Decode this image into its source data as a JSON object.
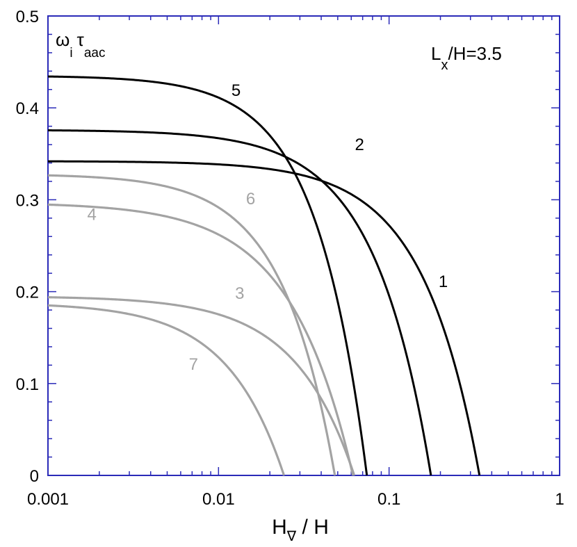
{
  "chart_data": {
    "type": "line",
    "x_scale": "log",
    "xlim": [
      0.001,
      1
    ],
    "ylim": [
      0,
      0.5
    ],
    "x_ticks": [
      {
        "value": 0.001,
        "label": "0.001"
      },
      {
        "value": 0.01,
        "label": "0.01"
      },
      {
        "value": 0.1,
        "label": "0.1"
      },
      {
        "value": 1,
        "label": "1"
      }
    ],
    "y_ticks": [
      {
        "value": 0,
        "label": "0"
      },
      {
        "value": 0.1,
        "label": "0.1"
      },
      {
        "value": 0.2,
        "label": "0.2"
      },
      {
        "value": 0.3,
        "label": "0.3"
      },
      {
        "value": 0.4,
        "label": "0.4"
      },
      {
        "value": 0.5,
        "label": "0.5"
      }
    ],
    "xlabel": {
      "main": "H",
      "sub": "∇",
      "rest": " / H"
    },
    "ylabel": {
      "w": "ω",
      "w_sub": "i",
      "t": "τ",
      "t_sub": "aac"
    },
    "annotation": {
      "main": "L",
      "sub": "x",
      "rest": "/H=3.5"
    },
    "grid": false,
    "colors": {
      "frame": "#2a2ab8",
      "black": "#000000",
      "gray": "#a3a3a3"
    },
    "series": [
      {
        "name": "1",
        "color": "black",
        "y0": 0.342,
        "xc": 0.339,
        "p": 1.3
      },
      {
        "name": "2",
        "color": "black",
        "y0": 0.376,
        "xc": 0.176,
        "p": 1.3
      },
      {
        "name": "3",
        "color": "gray",
        "y0": 0.195,
        "xc": 0.0625,
        "p": 1.25
      },
      {
        "name": "4",
        "color": "gray",
        "y0": 0.297,
        "xc": 0.0614,
        "p": 1.18
      },
      {
        "name": "5",
        "color": "black",
        "y0": 0.435,
        "xc": 0.0741,
        "p": 1.45
      },
      {
        "name": "6",
        "color": "gray",
        "y0": 0.328,
        "xc": 0.0481,
        "p": 1.4
      },
      {
        "name": "7",
        "color": "gray",
        "y0": 0.188,
        "xc": 0.0242,
        "p": 1.3
      }
    ],
    "curve_labels": [
      {
        "text": "1",
        "x": 0.195,
        "y": 0.205,
        "color": "black"
      },
      {
        "text": "2",
        "x": 0.063,
        "y": 0.354,
        "color": "black"
      },
      {
        "text": "3",
        "x": 0.0125,
        "y": 0.192,
        "color": "gray"
      },
      {
        "text": "4",
        "x": 0.0017,
        "y": 0.278,
        "color": "gray"
      },
      {
        "text": "5",
        "x": 0.0119,
        "y": 0.413,
        "color": "black"
      },
      {
        "text": "6",
        "x": 0.0145,
        "y": 0.295,
        "color": "gray"
      },
      {
        "text": "7",
        "x": 0.0067,
        "y": 0.115,
        "color": "gray"
      }
    ]
  }
}
